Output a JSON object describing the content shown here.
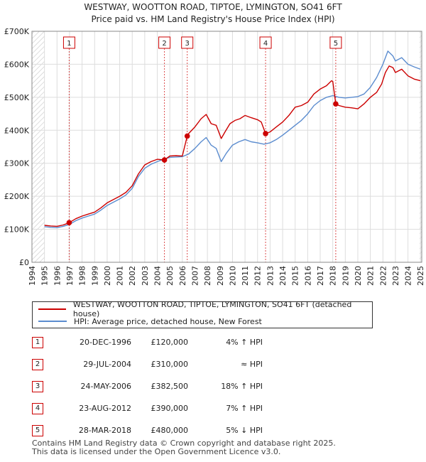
{
  "chart_data": {
    "type": "line",
    "title": "WESTWAY, WOOTTON ROAD, TIPTOE, LYMINGTON, SO41 6FT",
    "subtitle": "Price paid vs. HM Land Registry's House Price Index (HPI)",
    "xlabel": "",
    "ylabel": "",
    "xlim": [
      1994,
      2025.1
    ],
    "ylim": [
      0,
      700000
    ],
    "y_ticks": [
      0,
      100000,
      200000,
      300000,
      400000,
      500000,
      600000,
      700000
    ],
    "y_tick_labels": [
      "£0",
      "£100K",
      "£200K",
      "£300K",
      "£400K",
      "£500K",
      "£600K",
      "£700K"
    ],
    "x_ticks": [
      1994,
      1995,
      1996,
      1997,
      1998,
      1999,
      2000,
      2001,
      2002,
      2003,
      2004,
      2005,
      2006,
      2007,
      2008,
      2009,
      2010,
      2011,
      2012,
      2013,
      2014,
      2015,
      2016,
      2017,
      2018,
      2019,
      2020,
      2021,
      2022,
      2023,
      2024,
      2025
    ],
    "x_tick_labels": [
      "1994",
      "1995",
      "1996",
      "1997",
      "1998",
      "1999",
      "2000",
      "2001",
      "2002",
      "2003",
      "2004",
      "2005",
      "2006",
      "2007",
      "2008",
      "2009",
      "2010",
      "2011",
      "2012",
      "2013",
      "2014",
      "2015",
      "2016",
      "2017",
      "2018",
      "2019",
      "2020",
      "2021",
      "2022",
      "2023",
      "2024",
      "2025"
    ],
    "grid": true,
    "data_start": 1995.0,
    "series": [
      {
        "name": "WESTWAY, WOOTTON ROAD, TIPTOE, LYMINGTON, SO41 6FT (detached house)",
        "color": "#cc0000",
        "x": [
          1995.0,
          1995.5,
          1996.0,
          1996.5,
          1996.97,
          1997.5,
          1998.0,
          1998.5,
          1999.0,
          1999.5,
          2000.0,
          2000.5,
          2001.0,
          2001.5,
          2002.0,
          2002.5,
          2003.0,
          2003.5,
          2004.0,
          2004.57,
          2005.0,
          2005.5,
          2006.0,
          2006.39,
          2006.5,
          2007.0,
          2007.5,
          2007.9,
          2008.3,
          2008.7,
          2009.1,
          2009.4,
          2009.8,
          2010.2,
          2010.6,
          2011.0,
          2011.5,
          2012.0,
          2012.3,
          2012.64,
          2013.0,
          2013.5,
          2014.0,
          2014.5,
          2015.0,
          2015.5,
          2016.0,
          2016.5,
          2017.0,
          2017.5,
          2017.9,
          2018.0,
          2018.24,
          2018.5,
          2019.0,
          2019.5,
          2020.0,
          2020.5,
          2021.0,
          2021.5,
          2021.9,
          2022.2,
          2022.5,
          2022.8,
          2023.0,
          2023.5,
          2024.0,
          2024.5,
          2025.0
        ],
        "values": [
          112000,
          110000,
          109000,
          113000,
          120000,
          132000,
          140000,
          146000,
          152000,
          165000,
          180000,
          190000,
          200000,
          212000,
          232000,
          268000,
          295000,
          305000,
          312000,
          310000,
          322000,
          323000,
          322000,
          382500,
          390000,
          410000,
          435000,
          448000,
          420000,
          415000,
          375000,
          395000,
          420000,
          430000,
          435000,
          445000,
          438000,
          432000,
          425000,
          390000,
          395000,
          410000,
          425000,
          445000,
          470000,
          475000,
          485000,
          510000,
          525000,
          535000,
          550000,
          548000,
          480000,
          475000,
          470000,
          468000,
          465000,
          480000,
          500000,
          515000,
          540000,
          575000,
          595000,
          590000,
          575000,
          585000,
          565000,
          555000,
          550000
        ]
      },
      {
        "name": "HPI: Average price, detached house, New Forest",
        "color": "#5b8ccf",
        "x": [
          1995.0,
          1995.5,
          1996.0,
          1996.5,
          1997.0,
          1997.5,
          1998.0,
          1998.5,
          1999.0,
          1999.5,
          2000.0,
          2000.5,
          2001.0,
          2001.5,
          2002.0,
          2002.5,
          2003.0,
          2003.5,
          2004.0,
          2004.5,
          2005.0,
          2005.5,
          2006.0,
          2006.5,
          2007.0,
          2007.5,
          2007.9,
          2008.3,
          2008.7,
          2009.1,
          2009.5,
          2010.0,
          2010.5,
          2011.0,
          2011.5,
          2012.0,
          2012.5,
          2013.0,
          2013.5,
          2014.0,
          2014.5,
          2015.0,
          2015.5,
          2016.0,
          2016.5,
          2017.0,
          2017.5,
          2018.0,
          2018.5,
          2019.0,
          2019.5,
          2020.0,
          2020.5,
          2021.0,
          2021.5,
          2022.0,
          2022.4,
          2022.8,
          2023.0,
          2023.5,
          2024.0,
          2024.5,
          2025.0
        ],
        "values": [
          108000,
          106000,
          105000,
          109000,
          115000,
          126000,
          134000,
          140000,
          146000,
          158000,
          172000,
          182000,
          192000,
          204000,
          224000,
          260000,
          285000,
          297000,
          305000,
          312000,
          318000,
          319000,
          320000,
          328000,
          345000,
          365000,
          378000,
          355000,
          345000,
          305000,
          330000,
          355000,
          365000,
          372000,
          365000,
          362000,
          358000,
          362000,
          372000,
          385000,
          400000,
          415000,
          430000,
          450000,
          475000,
          490000,
          500000,
          505000,
          500000,
          498000,
          500000,
          502000,
          510000,
          530000,
          560000,
          600000,
          640000,
          625000,
          610000,
          620000,
          600000,
          592000,
          585000
        ]
      }
    ],
    "sales": [
      {
        "label": "1",
        "x": 1996.97,
        "value": 120000
      },
      {
        "label": "2",
        "x": 2004.57,
        "value": 310000
      },
      {
        "label": "3",
        "x": 2006.39,
        "value": 382500
      },
      {
        "label": "4",
        "x": 2012.64,
        "value": 390000
      },
      {
        "label": "5",
        "x": 2018.24,
        "value": 480000
      }
    ]
  },
  "legend": {
    "property_label": "WESTWAY, WOOTTON ROAD, TIPTOE, LYMINGTON, SO41 6FT (detached house)",
    "hpi_label": "HPI: Average price, detached house, New Forest"
  },
  "sales_table": [
    {
      "num": "1",
      "date": "20-DEC-1996",
      "price": "£120,000",
      "hpi": "4% ↑ HPI"
    },
    {
      "num": "2",
      "date": "29-JUL-2004",
      "price": "£310,000",
      "hpi": "≈ HPI"
    },
    {
      "num": "3",
      "date": "24-MAY-2006",
      "price": "£382,500",
      "hpi": "18% ↑ HPI"
    },
    {
      "num": "4",
      "date": "23-AUG-2012",
      "price": "£390,000",
      "hpi": "7% ↑ HPI"
    },
    {
      "num": "5",
      "date": "28-MAR-2018",
      "price": "£480,000",
      "hpi": "5% ↓ HPI"
    }
  ],
  "footer": {
    "line1": "Contains HM Land Registry data © Crown copyright and database right 2025.",
    "line2": "This data is licensed under the Open Government Licence v3.0."
  },
  "colors": {
    "property": "#cc0000",
    "hpi": "#5b8ccf",
    "hatch": "#cccccc",
    "grid": "#dddddd",
    "plot_bg": "#ffffff"
  }
}
